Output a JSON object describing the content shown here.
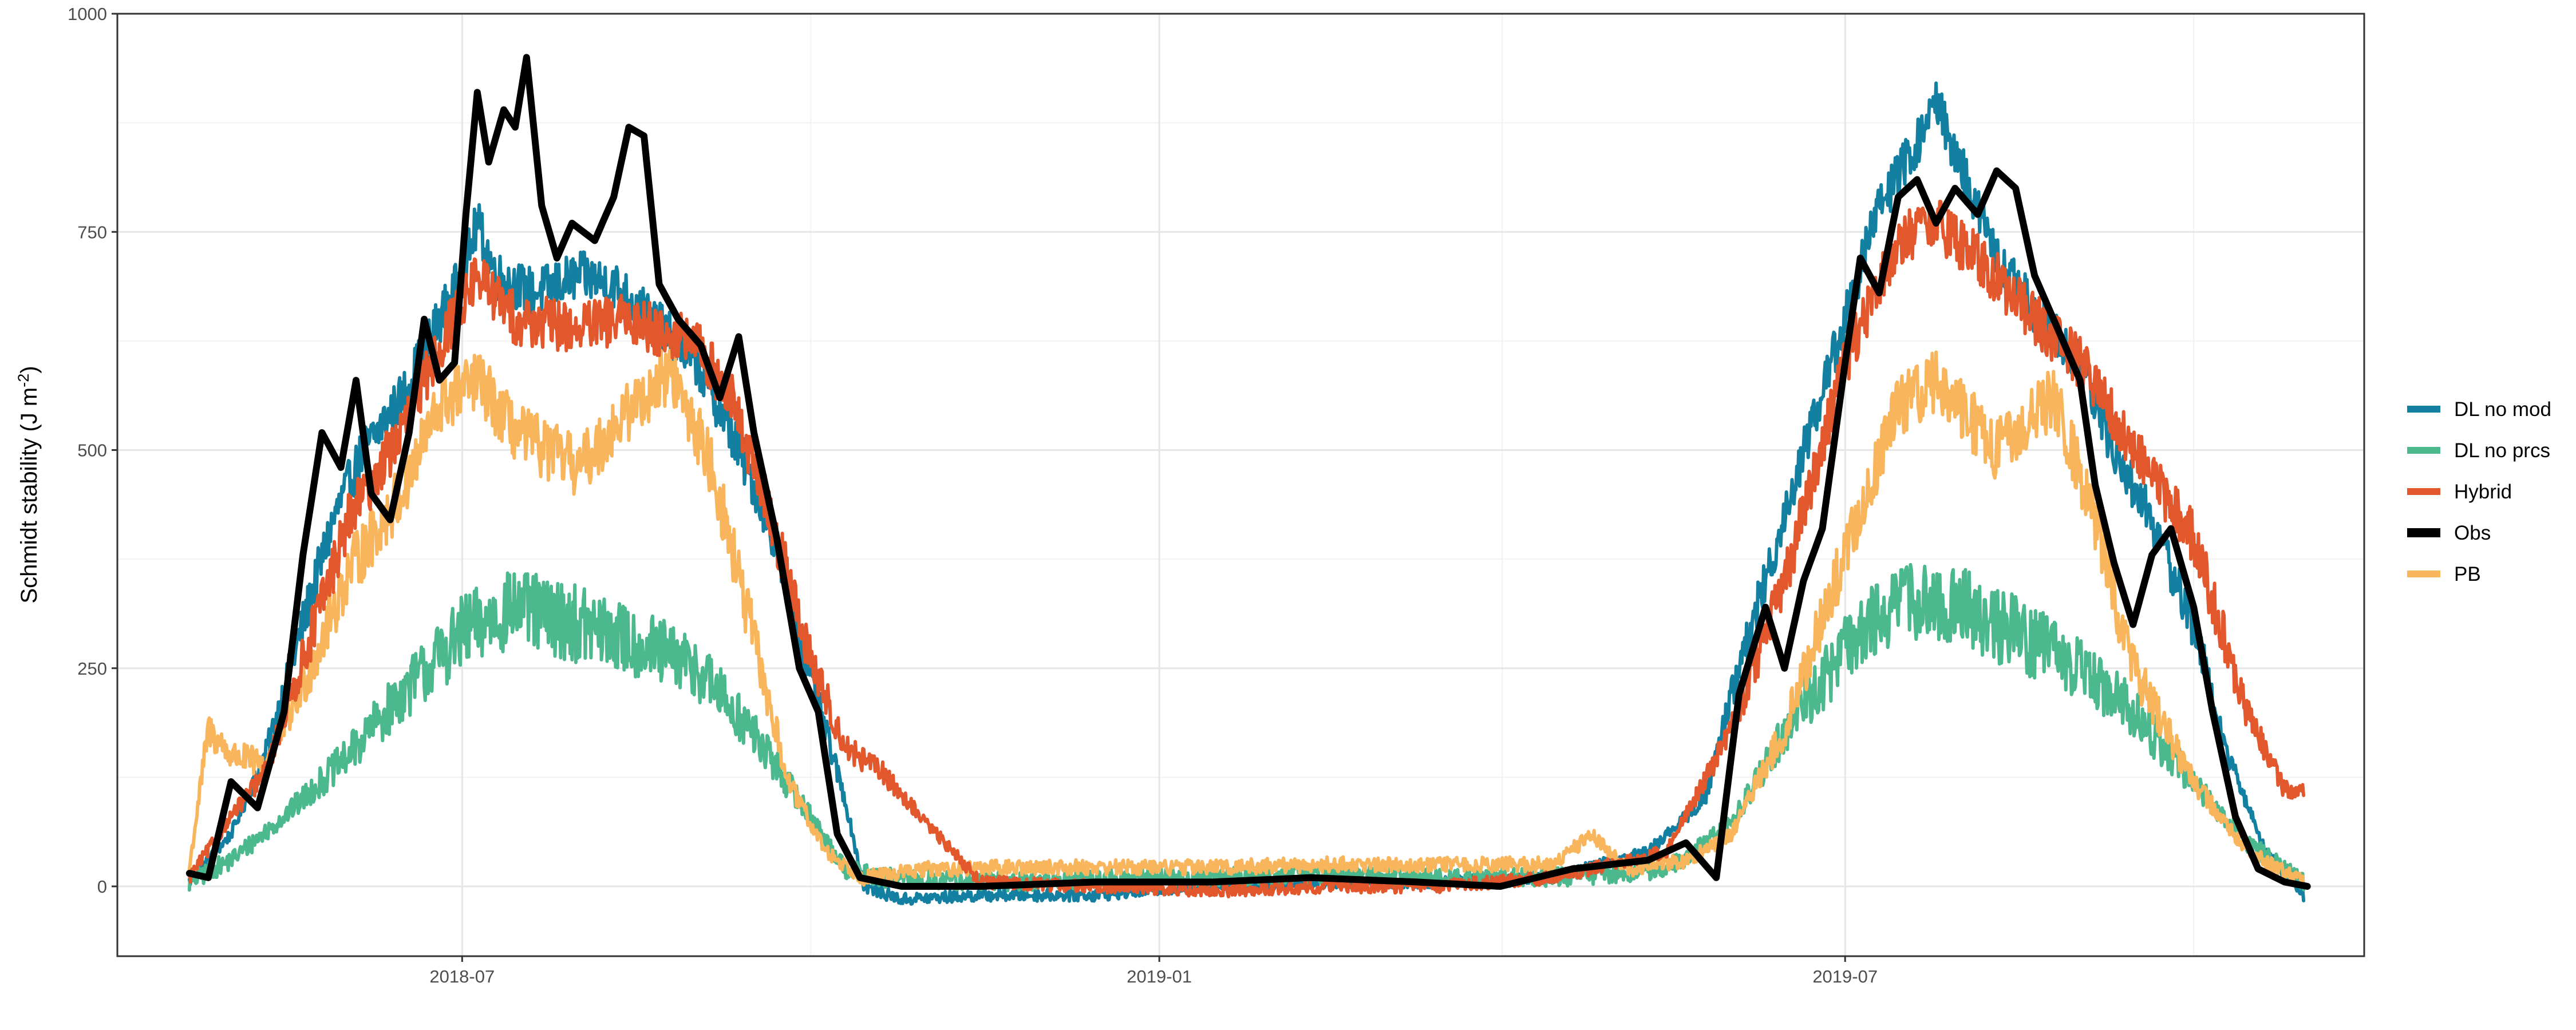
{
  "chart_data": {
    "type": "line",
    "title": "",
    "xlabel": "",
    "ylabel": "Schmidt stability (J m",
    "ylabel_superscript": "-2",
    "ylabel_suffix": ")",
    "xlim": [
      "2018-04-01",
      "2019-11-15"
    ],
    "ylim": [
      -80,
      1000
    ],
    "xticks": [
      {
        "date": "2018-07-01",
        "label": "2018-07"
      },
      {
        "date": "2019-01-01",
        "label": "2019-01"
      },
      {
        "date": "2019-07-01",
        "label": "2019-07"
      }
    ],
    "yticks": [
      0,
      250,
      500,
      750,
      1000
    ],
    "grid": true,
    "legend_position": "right",
    "series": [
      {
        "name": "DL no mod",
        "color": "#1380a1",
        "line_width": "medium",
        "noise": 28,
        "points": [
          [
            "2018-04-20",
            5
          ],
          [
            "2018-05-01",
            60
          ],
          [
            "2018-05-10",
            150
          ],
          [
            "2018-05-20",
            300
          ],
          [
            "2018-05-28",
            420
          ],
          [
            "2018-06-05",
            500
          ],
          [
            "2018-06-15",
            560
          ],
          [
            "2018-06-25",
            650
          ],
          [
            "2018-07-01",
            700
          ],
          [
            "2018-07-05",
            760
          ],
          [
            "2018-07-10",
            700
          ],
          [
            "2018-07-20",
            680
          ],
          [
            "2018-08-01",
            700
          ],
          [
            "2018-08-10",
            690
          ],
          [
            "2018-08-20",
            650
          ],
          [
            "2018-09-01",
            600
          ],
          [
            "2018-09-10",
            520
          ],
          [
            "2018-09-20",
            420
          ],
          [
            "2018-10-01",
            240
          ],
          [
            "2018-10-10",
            100
          ],
          [
            "2018-10-15",
            0
          ],
          [
            "2018-10-25",
            -15
          ],
          [
            "2018-11-15",
            -10
          ],
          [
            "2018-12-15",
            -10
          ],
          [
            "2019-01-10",
            0
          ],
          [
            "2019-02-15",
            5
          ],
          [
            "2019-03-15",
            5
          ],
          [
            "2019-04-15",
            10
          ],
          [
            "2019-05-10",
            40
          ],
          [
            "2019-05-25",
            100
          ],
          [
            "2019-06-01",
            220
          ],
          [
            "2019-06-10",
            350
          ],
          [
            "2019-06-20",
            500
          ],
          [
            "2019-07-01",
            650
          ],
          [
            "2019-07-10",
            780
          ],
          [
            "2019-07-20",
            850
          ],
          [
            "2019-07-25",
            900
          ],
          [
            "2019-08-01",
            820
          ],
          [
            "2019-08-10",
            720
          ],
          [
            "2019-08-20",
            660
          ],
          [
            "2019-09-01",
            600
          ],
          [
            "2019-09-10",
            500
          ],
          [
            "2019-09-20",
            420
          ],
          [
            "2019-10-01",
            300
          ],
          [
            "2019-10-10",
            150
          ],
          [
            "2019-10-20",
            40
          ],
          [
            "2019-10-30",
            -10
          ]
        ]
      },
      {
        "name": "DL no prcs",
        "color": "#4cb88e",
        "line_width": "medium",
        "noise": 45,
        "points": [
          [
            "2018-04-20",
            5
          ],
          [
            "2018-05-01",
            30
          ],
          [
            "2018-05-15",
            80
          ],
          [
            "2018-06-01",
            150
          ],
          [
            "2018-06-15",
            220
          ],
          [
            "2018-07-01",
            290
          ],
          [
            "2018-07-15",
            320
          ],
          [
            "2018-08-01",
            300
          ],
          [
            "2018-08-15",
            280
          ],
          [
            "2018-09-01",
            250
          ],
          [
            "2018-09-15",
            180
          ],
          [
            "2018-10-01",
            80
          ],
          [
            "2018-10-10",
            20
          ],
          [
            "2018-10-20",
            10
          ],
          [
            "2018-11-15",
            5
          ],
          [
            "2019-01-01",
            10
          ],
          [
            "2019-02-15",
            15
          ],
          [
            "2019-03-15",
            10
          ],
          [
            "2019-04-15",
            10
          ],
          [
            "2019-05-15",
            20
          ],
          [
            "2019-06-01",
            70
          ],
          [
            "2019-06-15",
            180
          ],
          [
            "2019-07-01",
            270
          ],
          [
            "2019-07-15",
            330
          ],
          [
            "2019-08-01",
            320
          ],
          [
            "2019-08-15",
            290
          ],
          [
            "2019-09-01",
            250
          ],
          [
            "2019-09-15",
            200
          ],
          [
            "2019-10-01",
            120
          ],
          [
            "2019-10-15",
            50
          ],
          [
            "2019-10-30",
            5
          ]
        ]
      },
      {
        "name": "Hybrid",
        "color": "#e2572b",
        "line_width": "medium",
        "noise": 30,
        "points": [
          [
            "2018-04-20",
            10
          ],
          [
            "2018-05-01",
            80
          ],
          [
            "2018-05-10",
            130
          ],
          [
            "2018-05-20",
            260
          ],
          [
            "2018-06-01",
            420
          ],
          [
            "2018-06-15",
            520
          ],
          [
            "2018-06-25",
            620
          ],
          [
            "2018-07-05",
            700
          ],
          [
            "2018-07-15",
            650
          ],
          [
            "2018-08-01",
            640
          ],
          [
            "2018-08-15",
            650
          ],
          [
            "2018-09-01",
            620
          ],
          [
            "2018-09-10",
            560
          ],
          [
            "2018-09-20",
            430
          ],
          [
            "2018-10-01",
            260
          ],
          [
            "2018-10-10",
            160
          ],
          [
            "2018-10-20",
            130
          ],
          [
            "2018-11-01",
            70
          ],
          [
            "2018-11-15",
            5
          ],
          [
            "2018-12-15",
            0
          ],
          [
            "2019-01-15",
            -5
          ],
          [
            "2019-02-15",
            0
          ],
          [
            "2019-03-15",
            0
          ],
          [
            "2019-04-15",
            10
          ],
          [
            "2019-05-15",
            40
          ],
          [
            "2019-06-01",
            180
          ],
          [
            "2019-06-15",
            350
          ],
          [
            "2019-07-01",
            600
          ],
          [
            "2019-07-15",
            740
          ],
          [
            "2019-07-25",
            760
          ],
          [
            "2019-08-05",
            720
          ],
          [
            "2019-08-20",
            650
          ],
          [
            "2019-09-01",
            600
          ],
          [
            "2019-09-15",
            500
          ],
          [
            "2019-10-01",
            400
          ],
          [
            "2019-10-15",
            200
          ],
          [
            "2019-10-25",
            110
          ],
          [
            "2019-10-30",
            110
          ]
        ]
      },
      {
        "name": "Obs",
        "color": "#000000",
        "line_width": "thick",
        "noise": 0,
        "points": [
          [
            "2018-04-20",
            15
          ],
          [
            "2018-04-25",
            10
          ],
          [
            "2018-05-01",
            120
          ],
          [
            "2018-05-08",
            90
          ],
          [
            "2018-05-15",
            200
          ],
          [
            "2018-05-20",
            380
          ],
          [
            "2018-05-25",
            520
          ],
          [
            "2018-05-30",
            480
          ],
          [
            "2018-06-03",
            580
          ],
          [
            "2018-06-07",
            450
          ],
          [
            "2018-06-12",
            420
          ],
          [
            "2018-06-17",
            520
          ],
          [
            "2018-06-21",
            650
          ],
          [
            "2018-06-25",
            580
          ],
          [
            "2018-06-29",
            600
          ],
          [
            "2018-07-02",
            770
          ],
          [
            "2018-07-05",
            910
          ],
          [
            "2018-07-08",
            830
          ],
          [
            "2018-07-12",
            890
          ],
          [
            "2018-07-15",
            870
          ],
          [
            "2018-07-18",
            950
          ],
          [
            "2018-07-22",
            780
          ],
          [
            "2018-07-26",
            720
          ],
          [
            "2018-07-30",
            760
          ],
          [
            "2018-08-05",
            740
          ],
          [
            "2018-08-10",
            790
          ],
          [
            "2018-08-14",
            870
          ],
          [
            "2018-08-18",
            860
          ],
          [
            "2018-08-22",
            690
          ],
          [
            "2018-08-27",
            650
          ],
          [
            "2018-09-02",
            620
          ],
          [
            "2018-09-07",
            560
          ],
          [
            "2018-09-12",
            630
          ],
          [
            "2018-09-16",
            520
          ],
          [
            "2018-09-22",
            400
          ],
          [
            "2018-09-28",
            250
          ],
          [
            "2018-10-03",
            200
          ],
          [
            "2018-10-08",
            60
          ],
          [
            "2018-10-14",
            10
          ],
          [
            "2018-10-25",
            0
          ],
          [
            "2018-11-15",
            0
          ],
          [
            "2018-12-15",
            5
          ],
          [
            "2019-01-15",
            5
          ],
          [
            "2019-02-10",
            10
          ],
          [
            "2019-03-10",
            5
          ],
          [
            "2019-04-01",
            0
          ],
          [
            "2019-04-20",
            20
          ],
          [
            "2019-05-10",
            30
          ],
          [
            "2019-05-20",
            50
          ],
          [
            "2019-05-28",
            10
          ],
          [
            "2019-06-03",
            220
          ],
          [
            "2019-06-10",
            320
          ],
          [
            "2019-06-15",
            250
          ],
          [
            "2019-06-20",
            350
          ],
          [
            "2019-06-25",
            410
          ],
          [
            "2019-07-01",
            600
          ],
          [
            "2019-07-05",
            720
          ],
          [
            "2019-07-10",
            680
          ],
          [
            "2019-07-15",
            790
          ],
          [
            "2019-07-20",
            810
          ],
          [
            "2019-07-25",
            760
          ],
          [
            "2019-07-30",
            800
          ],
          [
            "2019-08-05",
            770
          ],
          [
            "2019-08-10",
            820
          ],
          [
            "2019-08-15",
            800
          ],
          [
            "2019-08-20",
            700
          ],
          [
            "2019-08-25",
            650
          ],
          [
            "2019-09-01",
            580
          ],
          [
            "2019-09-05",
            460
          ],
          [
            "2019-09-10",
            370
          ],
          [
            "2019-09-15",
            300
          ],
          [
            "2019-09-20",
            380
          ],
          [
            "2019-09-25",
            410
          ],
          [
            "2019-10-01",
            320
          ],
          [
            "2019-10-06",
            200
          ],
          [
            "2019-10-12",
            80
          ],
          [
            "2019-10-18",
            20
          ],
          [
            "2019-10-25",
            5
          ],
          [
            "2019-10-31",
            0
          ]
        ]
      },
      {
        "name": "PB",
        "color": "#f9b55c",
        "line_width": "medium",
        "noise": 35,
        "points": [
          [
            "2018-04-20",
            20
          ],
          [
            "2018-04-25",
            180
          ],
          [
            "2018-05-01",
            150
          ],
          [
            "2018-05-10",
            140
          ],
          [
            "2018-05-20",
            230
          ],
          [
            "2018-06-01",
            360
          ],
          [
            "2018-06-15",
            450
          ],
          [
            "2018-06-25",
            550
          ],
          [
            "2018-07-05",
            580
          ],
          [
            "2018-07-15",
            520
          ],
          [
            "2018-08-01",
            480
          ],
          [
            "2018-08-15",
            550
          ],
          [
            "2018-08-25",
            590
          ],
          [
            "2018-09-05",
            480
          ],
          [
            "2018-09-15",
            300
          ],
          [
            "2018-09-25",
            120
          ],
          [
            "2018-10-05",
            40
          ],
          [
            "2018-10-15",
            10
          ],
          [
            "2018-11-01",
            20
          ],
          [
            "2018-12-01",
            22
          ],
          [
            "2019-01-15",
            22
          ],
          [
            "2019-02-15",
            25
          ],
          [
            "2019-03-15",
            25
          ],
          [
            "2019-04-15",
            25
          ],
          [
            "2019-04-25",
            60
          ],
          [
            "2019-05-05",
            20
          ],
          [
            "2019-05-20",
            30
          ],
          [
            "2019-06-01",
            60
          ],
          [
            "2019-06-15",
            180
          ],
          [
            "2019-07-01",
            380
          ],
          [
            "2019-07-15",
            550
          ],
          [
            "2019-07-25",
            580
          ],
          [
            "2019-08-10",
            500
          ],
          [
            "2019-08-25",
            560
          ],
          [
            "2019-09-05",
            420
          ],
          [
            "2019-09-15",
            250
          ],
          [
            "2019-10-01",
            120
          ],
          [
            "2019-10-15",
            40
          ],
          [
            "2019-10-30",
            5
          ]
        ]
      }
    ]
  }
}
